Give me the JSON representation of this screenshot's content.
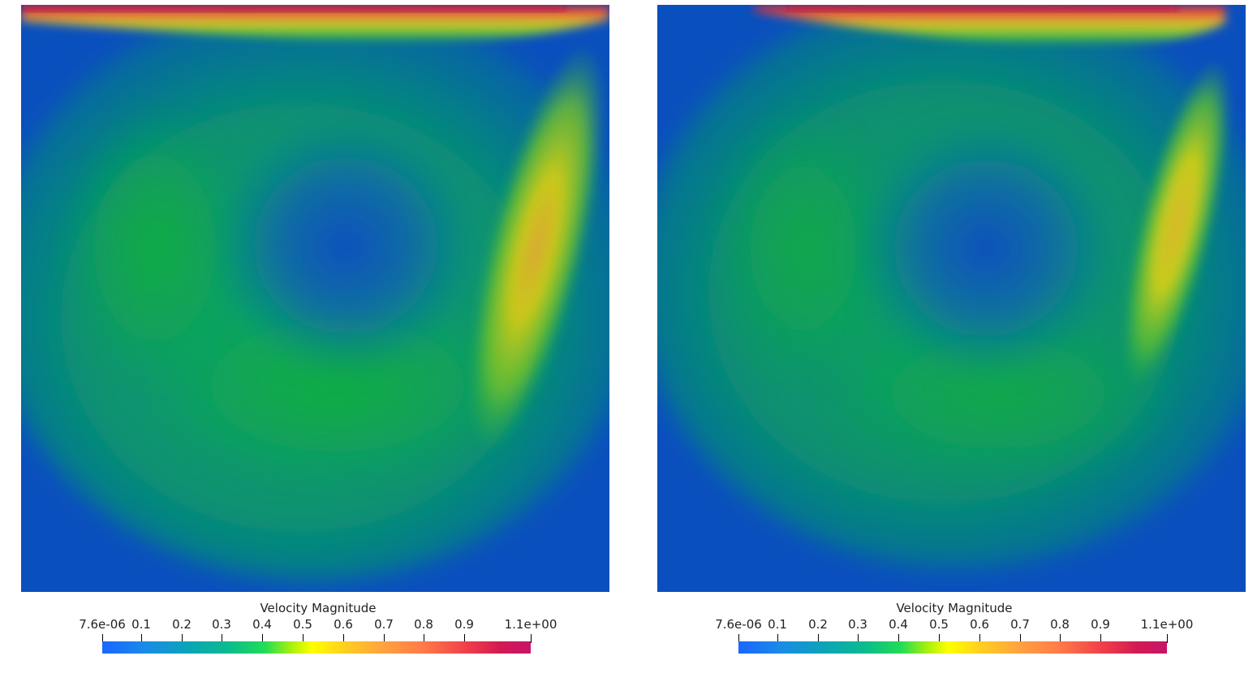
{
  "panels": [
    {
      "id": "left",
      "legend": {
        "title": "Velocity Magnitude",
        "ticks": [
          "7.6e-06",
          "0.1",
          "0.2",
          "0.3",
          "0.4",
          "0.5",
          "0.6",
          "0.7",
          "0.8",
          "0.9",
          "1.1e+00"
        ]
      }
    },
    {
      "id": "right",
      "legend": {
        "title": "Velocity Magnitude",
        "ticks": [
          "7.6e-06",
          "0.1",
          "0.2",
          "0.3",
          "0.4",
          "0.5",
          "0.6",
          "0.7",
          "0.8",
          "0.9",
          "1.1e+00"
        ]
      }
    }
  ],
  "colormap": {
    "low": "#1a66ff",
    "mid": "#ffff00",
    "high": "#c7146a",
    "background_field": "#0a4fbe"
  }
}
